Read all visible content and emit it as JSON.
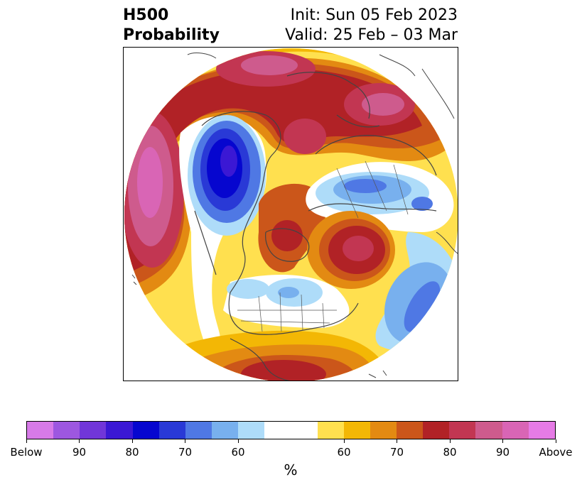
{
  "title": {
    "left_line1": "H500",
    "left_line2": "Probability",
    "right_line1": "Init: Sun 05 Feb 2023",
    "right_line2": "Valid: 25 Feb – 03 Mar"
  },
  "colorbar": {
    "colors": [
      "#d77ae8",
      "#9d57e0",
      "#7136d9",
      "#3b18d4",
      "#0606cf",
      "#2939d6",
      "#4f78e4",
      "#78b0ee",
      "#aedcf9",
      "#ffffff",
      "#ffe04f",
      "#f3b705",
      "#e38a12",
      "#cb561a",
      "#b12226",
      "#c23652",
      "#ce5b8d",
      "#d965b5",
      "#e67be6"
    ],
    "widths": [
      1,
      1,
      1,
      1,
      1,
      1,
      1,
      1,
      1,
      2,
      1,
      1,
      1,
      1,
      1,
      1,
      1,
      1,
      1
    ],
    "tick_labels": [
      "Below",
      "90",
      "80",
      "70",
      "60",
      "60",
      "70",
      "80",
      "90",
      "Above"
    ],
    "unit_label": "%"
  }
}
